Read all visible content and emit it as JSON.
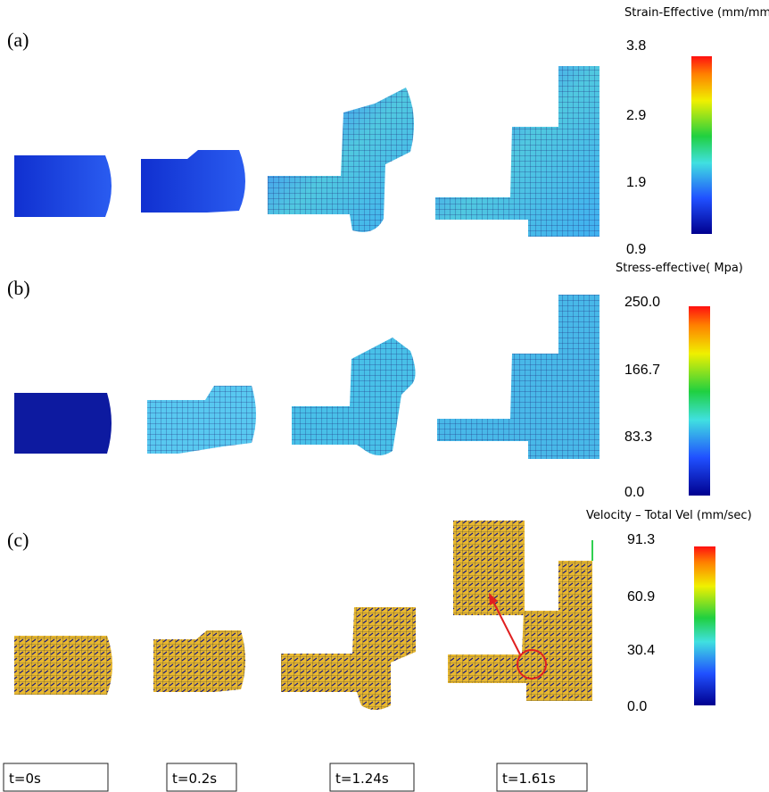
{
  "panels": [
    {
      "label": "(a)",
      "colorbar": {
        "title": "Strain-Effective (mm/mm)",
        "ticks": [
          "3.8",
          "2.9",
          "1.9",
          "0.9"
        ]
      }
    },
    {
      "label": "(b)",
      "colorbar": {
        "title": "Stress-effective( Mpa)",
        "ticks": [
          "250.0",
          "166.7",
          "83.3",
          "0.0"
        ]
      }
    },
    {
      "label": "(c)",
      "colorbar": {
        "title": "Velocity – Total  Vel  (mm/sec)",
        "ticks": [
          "91.3",
          "60.9",
          "30.4",
          "0.0"
        ]
      }
    }
  ],
  "time_labels": [
    "t=0s",
    "t=0.2s",
    "t=1.24s",
    "t=1.61s"
  ]
}
